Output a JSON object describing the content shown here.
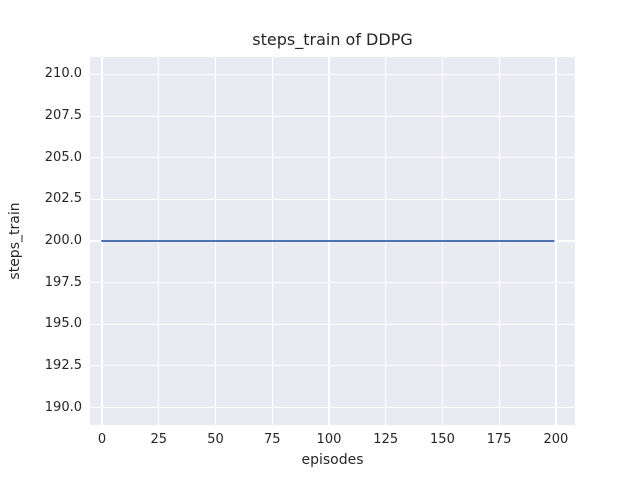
{
  "chart_data": {
    "type": "line",
    "title": "steps_train of DDPG",
    "xlabel": "episodes",
    "ylabel": "steps_train",
    "series": [
      {
        "name": "steps_train",
        "x": [
          0,
          199
        ],
        "y": [
          200,
          200
        ],
        "color": "#4c72b0",
        "linewidth": 2
      }
    ],
    "xlim": [
      -5.3,
      208.4
    ],
    "ylim": [
      188.95,
      211.05
    ],
    "xticks": [
      0,
      25,
      50,
      75,
      100,
      125,
      150,
      175,
      200
    ],
    "xtick_labels": [
      "0",
      "25",
      "50",
      "75",
      "100",
      "125",
      "150",
      "175",
      "200"
    ],
    "yticks": [
      190.0,
      192.5,
      195.0,
      197.5,
      200.0,
      202.5,
      205.0,
      207.5,
      210.0
    ],
    "ytick_labels": [
      "190.0",
      "192.5",
      "195.0",
      "197.5",
      "200.0",
      "202.5",
      "205.0",
      "207.5",
      "210.0"
    ],
    "grid": true,
    "legend": false,
    "colors": {
      "figure_background": "#ffffff",
      "axes_background": "#eaeaf2",
      "grid_color": "#ffffff",
      "text_color": "#262626",
      "line_color": "#4c72b0"
    }
  }
}
